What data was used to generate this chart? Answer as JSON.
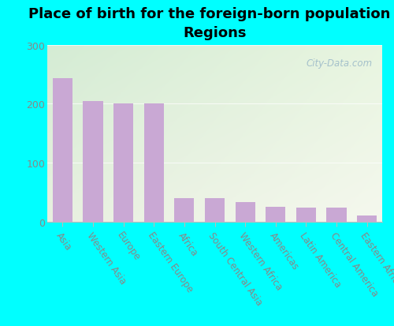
{
  "title": "Place of birth for the foreign-born population -\nRegions",
  "categories": [
    "Asia",
    "Western Asia",
    "Europe",
    "Eastern Europe",
    "Africa",
    "South Central Asia",
    "Western Africa",
    "Americas",
    "Latin America",
    "Central America",
    "Eastern Africa"
  ],
  "values": [
    243,
    204,
    200,
    200,
    40,
    40,
    33,
    25,
    24,
    24,
    10
  ],
  "bar_color": "#c9a8d4",
  "background_color": "#00ffff",
  "plot_bg_top_left": "#d4ecd4",
  "plot_bg_bottom_right": "#f0f5e8",
  "ylim": [
    0,
    300
  ],
  "yticks": [
    0,
    100,
    200,
    300
  ],
  "title_fontsize": 13,
  "tick_label_fontsize": 8.5,
  "ytick_label_fontsize": 9,
  "watermark_text": "City-Data.com",
  "tick_color": "#888888",
  "label_color": "#888888"
}
